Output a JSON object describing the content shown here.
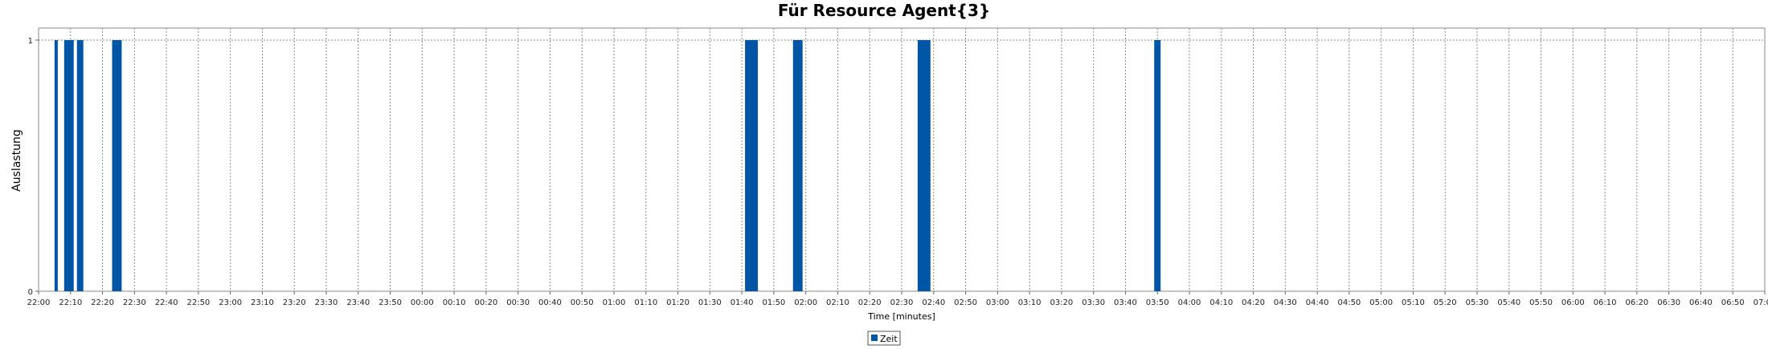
{
  "chart_data": {
    "type": "bar",
    "title": "Für Resource Agent{3}",
    "xlabel": "Time [minutes]",
    "ylabel": "Auslastung",
    "y_ticks": [
      "0",
      "1"
    ],
    "ylim": [
      0,
      1
    ],
    "x_range_minutes": [
      0,
      540
    ],
    "x_ticks": [
      "22:00",
      "22:10",
      "22:20",
      "22:30",
      "22:40",
      "22:50",
      "23:00",
      "23:10",
      "23:20",
      "23:30",
      "23:40",
      "23:50",
      "00:00",
      "00:10",
      "00:20",
      "00:30",
      "00:40",
      "00:50",
      "01:00",
      "01:10",
      "01:20",
      "01:30",
      "01:40",
      "01:50",
      "02:00",
      "02:10",
      "02:20",
      "02:30",
      "02:40",
      "02:50",
      "03:00",
      "03:10",
      "03:20",
      "03:30",
      "03:40",
      "03:50",
      "04:00",
      "04:10",
      "04:20",
      "04:30",
      "04:40",
      "04:50",
      "05:00",
      "05:10",
      "05:20",
      "05:30",
      "05:40",
      "05:50",
      "06:00",
      "06:10",
      "06:20",
      "06:30",
      "06:40",
      "06:50",
      "07:00"
    ],
    "grid": true,
    "legend_position": "bottom-center",
    "series": [
      {
        "name": "Zeit",
        "color": "#0055a5",
        "bars": [
          {
            "start": "22:05",
            "end": "22:06",
            "value": 1
          },
          {
            "start": "22:08",
            "end": "22:11",
            "value": 1
          },
          {
            "start": "22:12",
            "end": "22:14",
            "value": 1
          },
          {
            "start": "22:23",
            "end": "22:26",
            "value": 1
          },
          {
            "start": "01:41",
            "end": "01:45",
            "value": 1
          },
          {
            "start": "01:56",
            "end": "01:59",
            "value": 1
          },
          {
            "start": "02:35",
            "end": "02:39",
            "value": 1
          },
          {
            "start": "03:49",
            "end": "03:51",
            "value": 1
          }
        ]
      }
    ]
  }
}
